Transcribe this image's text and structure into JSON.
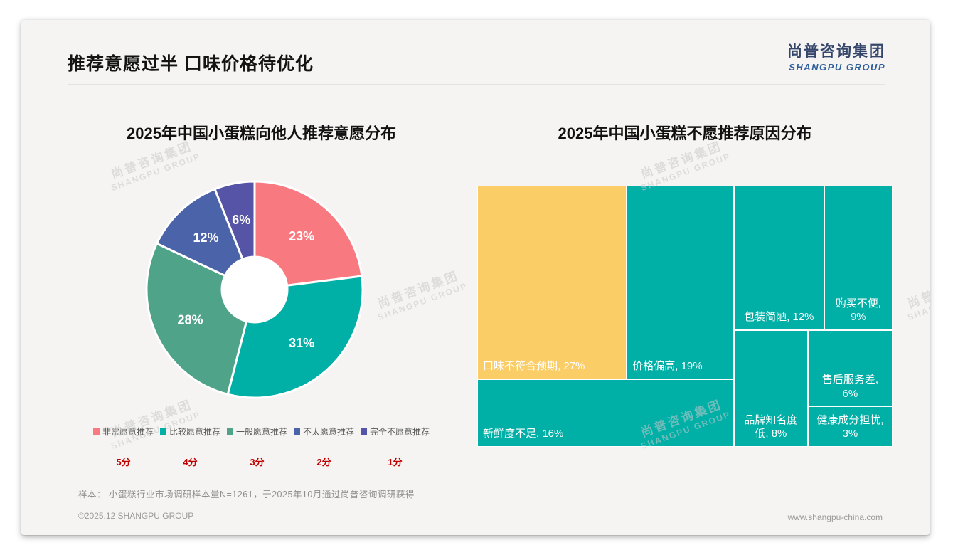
{
  "header": {
    "title": "推荐意愿过半 口味价格待优化",
    "logo_cn": "尚普咨询集团",
    "logo_en": "SHANGPU GROUP"
  },
  "watermark": {
    "line1": "尚普咨询集团",
    "line2": "SHANGPU GROUP"
  },
  "footnote": "样本： 小蛋糕行业市场调研样本量N=1261，于2025年10月通过尚普咨询调研获得",
  "footer": {
    "left": "©2025.12 SHANGPU GROUP",
    "right": "www.shangpu-china.com"
  },
  "colors": {
    "pink": "#f8797f",
    "teal": "#00afa6",
    "sage_green": "#4fa389",
    "blue": "#4a63a9",
    "navy_purple": "#5654a6",
    "yellow": "#facd66",
    "score_red": "#c00000",
    "logo_navy": "#35466b",
    "logo_blue": "#2e5e9c"
  },
  "chart_data": [
    {
      "type": "pie",
      "subtype": "donut",
      "title": "2025年中国小蛋糕向他人推荐意愿分布",
      "categories": [
        "非常愿意推荐",
        "比较愿意推荐",
        "一般愿意推荐",
        "不太愿意推荐",
        "完全不愿意推荐"
      ],
      "values": [
        23,
        31,
        28,
        12,
        6
      ],
      "labels": [
        "23%",
        "31%",
        "28%",
        "12%",
        "6%"
      ],
      "scores": [
        "5分",
        "4分",
        "3分",
        "2分",
        "1分"
      ],
      "colors": [
        "#f8797f",
        "#00afa6",
        "#4fa389",
        "#4a63a9",
        "#5654a6"
      ],
      "start_angle_deg": 0,
      "clockwise": true,
      "inner_radius_ratio": 0.3,
      "legend_position": "bottom"
    },
    {
      "type": "treemap",
      "title": "2025年中国小蛋糕不愿推荐原因分布",
      "items": [
        {
          "name": "口味不符合预期",
          "value": 27,
          "label": "口味不符合预期, 27%",
          "color": "#facd66",
          "align": "bl",
          "rect": {
            "x": 0.0,
            "y": 0.0,
            "w": 0.36,
            "h": 0.741
          }
        },
        {
          "name": "价格偏高",
          "value": 19,
          "label": "价格偏高, 19%",
          "color": "#00afa6",
          "align": "bl",
          "rect": {
            "x": 0.36,
            "y": 0.0,
            "w": 0.258,
            "h": 0.741
          }
        },
        {
          "name": "新鲜度不足",
          "value": 16,
          "label": "新鲜度不足, 16%",
          "color": "#00afa6",
          "align": "bl",
          "rect": {
            "x": 0.0,
            "y": 0.741,
            "w": 0.618,
            "h": 0.259
          }
        },
        {
          "name": "包装简陋",
          "value": 12,
          "label": "包装简陋, 12%",
          "color": "#00afa6",
          "align": "bc",
          "rect": {
            "x": 0.618,
            "y": 0.0,
            "w": 0.217,
            "h": 0.553
          }
        },
        {
          "name": "购买不便",
          "value": 9,
          "label": "购买不便,\n9%",
          "color": "#00afa6",
          "align": "bc",
          "rect": {
            "x": 0.835,
            "y": 0.0,
            "w": 0.165,
            "h": 0.553
          }
        },
        {
          "name": "品牌知名度低",
          "value": 8,
          "label": "品牌知名度\n低, 8%",
          "color": "#00afa6",
          "align": "bc",
          "rect": {
            "x": 0.618,
            "y": 0.553,
            "w": 0.178,
            "h": 0.447
          }
        },
        {
          "name": "售后服务差",
          "value": 6,
          "label": "售后服务差,\n6%",
          "color": "#00afa6",
          "align": "bc",
          "rect": {
            "x": 0.796,
            "y": 0.553,
            "w": 0.204,
            "h": 0.292
          }
        },
        {
          "name": "健康成分担忧",
          "value": 3,
          "label": "健康成分担忧,\n3%",
          "color": "#00afa6",
          "align": "bc",
          "rect": {
            "x": 0.796,
            "y": 0.845,
            "w": 0.204,
            "h": 0.155
          }
        }
      ]
    }
  ]
}
